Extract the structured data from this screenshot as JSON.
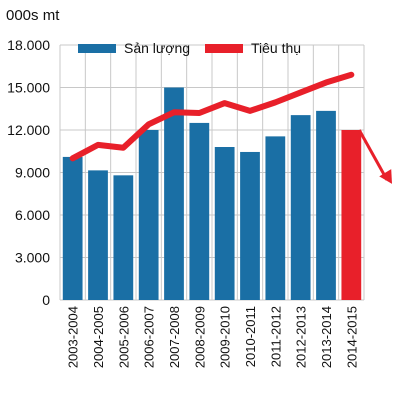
{
  "chart_data": {
    "type": "bar",
    "unit_label": "000s mt",
    "categories": [
      "2003-2004",
      "2004-2005",
      "2005-2006",
      "2006-2007",
      "2007-2008",
      "2008-2009",
      "2009-2010",
      "2010-2011",
      "2011-2012",
      "2012-2013",
      "2013-2014",
      "2014-2015"
    ],
    "series": [
      {
        "name": "Sản lượng",
        "type": "bar",
        "color": "#1a6fa5",
        "highlight_color": "#e8202a",
        "highlight_index": 11,
        "values": [
          10100,
          9150,
          8800,
          12000,
          15000,
          12500,
          10800,
          10450,
          11550,
          13050,
          13350,
          12000
        ]
      },
      {
        "name": "Tiêu thụ",
        "type": "line",
        "color": "#e8202a",
        "values": [
          10000,
          10950,
          10750,
          12400,
          13250,
          13200,
          13900,
          13350,
          13950,
          14650,
          15350,
          15900
        ]
      }
    ],
    "trend_arrow": {
      "from_value": 12000,
      "to_value": 8200,
      "direction": "down"
    },
    "ylim": [
      0,
      18000
    ],
    "yticks": [
      0,
      3000,
      6000,
      9000,
      12000,
      15000,
      18000
    ],
    "ytick_labels": [
      "0",
      "3.000",
      "6.000",
      "9.000",
      "12.000",
      "15.000",
      "18.000"
    ],
    "grid": true,
    "grid_color": "#c8c8c8",
    "legend_position": "top-left"
  }
}
